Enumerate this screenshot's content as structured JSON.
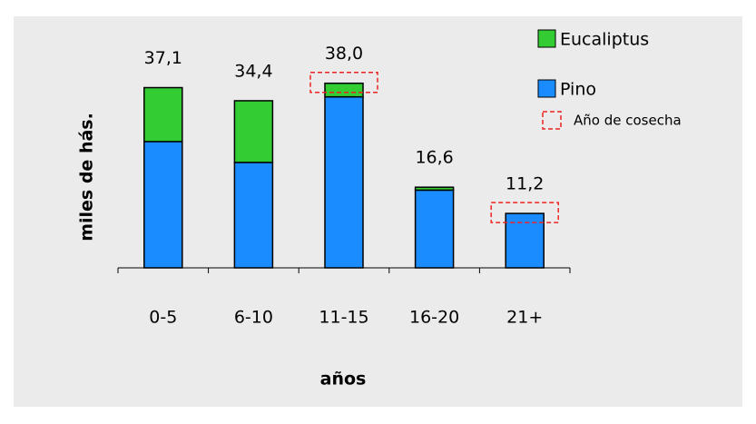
{
  "chart_data": {
    "type": "stacked-bar",
    "categories": [
      "0-5",
      "6-10",
      "11-15",
      "16-20",
      "21+"
    ],
    "series": [
      {
        "name": "Pino",
        "color": "#1a8cff",
        "values": [
          26.0,
          21.7,
          35.2,
          16.0,
          11.2
        ]
      },
      {
        "name": "Eucaliptus",
        "color": "#33cc33",
        "values": [
          11.1,
          12.7,
          2.8,
          0.6,
          0
        ]
      }
    ],
    "totals": [
      37.1,
      34.4,
      38.0,
      16.6,
      11.2
    ],
    "total_labels": [
      "37,1",
      "34,4",
      "38,0",
      "16,6",
      "11,2"
    ],
    "harvest": {
      "label": "Año de cosecha",
      "color": "#ee2222",
      "categories": [
        "11-15",
        "21+"
      ]
    },
    "xlabel": "años",
    "ylabel": "miles de hás.",
    "ylim": [
      0,
      40
    ],
    "legend": "top-right"
  }
}
